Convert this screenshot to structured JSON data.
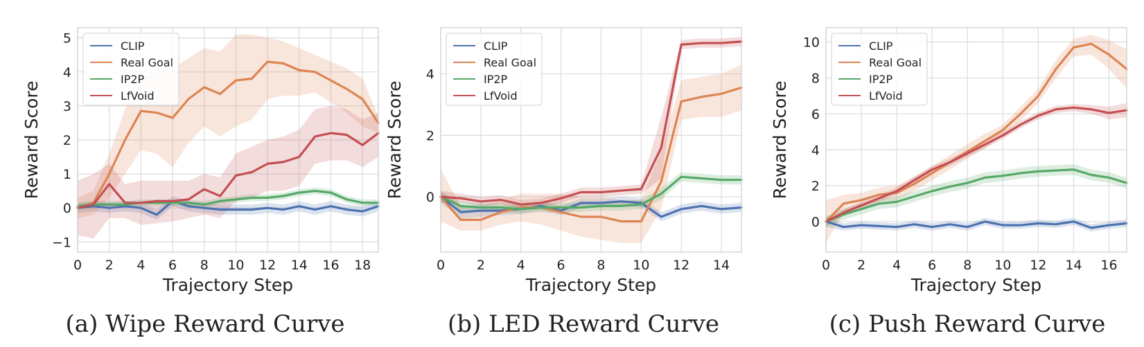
{
  "chart_data": [
    {
      "type": "line",
      "title": "",
      "caption": "(a) Wipe Reward Curve",
      "xlabel": "Trajectory Step",
      "ylabel": "Reward Score",
      "xlim": [
        0,
        19
      ],
      "ylim": [
        -1.3,
        5.3
      ],
      "xticks": [
        0,
        2,
        4,
        6,
        8,
        10,
        12,
        14,
        16,
        18
      ],
      "yticks": [
        -1,
        0,
        1,
        2,
        3,
        4,
        5
      ],
      "grid": true,
      "legend_position": "top-left",
      "x": [
        0,
        1,
        2,
        3,
        4,
        5,
        6,
        7,
        8,
        9,
        10,
        11,
        12,
        13,
        14,
        15,
        16,
        17,
        18,
        19
      ],
      "series": [
        {
          "name": "CLIP",
          "color": "#4c72b0",
          "values": [
            0,
            0.05,
            0,
            0.05,
            0,
            -0.2,
            0.2,
            0.05,
            0,
            -0.05,
            -0.05,
            -0.05,
            0,
            -0.05,
            0.05,
            -0.05,
            0.05,
            -0.05,
            -0.1,
            0.05
          ],
          "lower": [
            -0.15,
            -0.1,
            -0.15,
            -0.1,
            -0.15,
            -0.35,
            0.05,
            -0.1,
            -0.15,
            -0.2,
            -0.2,
            -0.2,
            -0.15,
            -0.2,
            -0.1,
            -0.2,
            -0.1,
            -0.2,
            -0.25,
            -0.1
          ],
          "upper": [
            0.15,
            0.2,
            0.15,
            0.2,
            0.15,
            -0.05,
            0.35,
            0.2,
            0.15,
            0.1,
            0.1,
            0.1,
            0.15,
            0.1,
            0.2,
            0.1,
            0.2,
            0.1,
            0.05,
            0.2
          ]
        },
        {
          "name": "Real Goal",
          "color": "#dd8452",
          "values": [
            0,
            0.15,
            1,
            2,
            2.85,
            2.8,
            2.65,
            3.2,
            3.55,
            3.35,
            3.75,
            3.8,
            4.3,
            4.25,
            4.05,
            4,
            3.75,
            3.5,
            3.2,
            2.5
          ],
          "lower": [
            -0.3,
            -0.2,
            0.3,
            1,
            1.7,
            1.6,
            1.2,
            1.9,
            2.4,
            2.1,
            2.4,
            2.6,
            3.2,
            3.3,
            3.3,
            3.4,
            3.1,
            2.8,
            2.4,
            2.2
          ],
          "upper": [
            0.3,
            0.5,
            1.6,
            2.9,
            3.8,
            4,
            4.1,
            4.4,
            4.7,
            4.6,
            5.1,
            5.1,
            5,
            4.9,
            4.7,
            4.5,
            4.3,
            4.1,
            3.8,
            2.7
          ]
        },
        {
          "name": "IP2P",
          "color": "#55a868",
          "values": [
            0.05,
            0.1,
            0.1,
            0.1,
            0.15,
            0.15,
            0.15,
            0.15,
            0.1,
            0.2,
            0.25,
            0.3,
            0.3,
            0.35,
            0.45,
            0.5,
            0.45,
            0.25,
            0.15,
            0.15
          ],
          "lower": [
            -0.05,
            0,
            0,
            0,
            0.05,
            0.05,
            0.05,
            0.05,
            0,
            0.1,
            0.15,
            0.2,
            0.2,
            0.25,
            0.35,
            0.4,
            0.35,
            0.15,
            0.05,
            0.05
          ],
          "upper": [
            0.15,
            0.2,
            0.2,
            0.2,
            0.25,
            0.25,
            0.25,
            0.25,
            0.2,
            0.3,
            0.35,
            0.4,
            0.4,
            0.45,
            0.55,
            0.6,
            0.55,
            0.35,
            0.25,
            0.25
          ]
        },
        {
          "name": "LfVoid",
          "color": "#c44e52",
          "values": [
            0,
            0.1,
            0.7,
            0.15,
            0.15,
            0.2,
            0.2,
            0.25,
            0.55,
            0.35,
            0.95,
            1.05,
            1.3,
            1.35,
            1.5,
            2.1,
            2.2,
            2.15,
            1.85,
            2.2
          ],
          "lower": [
            -0.8,
            -0.9,
            -0.3,
            -0.3,
            -0.5,
            -0.45,
            -0.4,
            -0.3,
            -0.2,
            -0.3,
            0.2,
            0.3,
            0.5,
            0.5,
            0.65,
            1.3,
            1.4,
            1.4,
            1.2,
            1.5
          ],
          "upper": [
            0.8,
            1,
            1.3,
            0.7,
            0.8,
            0.8,
            0.8,
            0.8,
            1,
            0.9,
            1.6,
            1.8,
            2,
            2.1,
            2.3,
            2.9,
            3,
            2.9,
            2.6,
            2.8
          ]
        }
      ]
    },
    {
      "type": "line",
      "title": "",
      "caption": "(b) LED Reward Curve",
      "xlabel": "Trajectory Step",
      "ylabel": "Reward Score",
      "xlim": [
        0,
        15
      ],
      "ylim": [
        -1.8,
        5.5
      ],
      "xticks": [
        0,
        2,
        4,
        6,
        8,
        10,
        12,
        14
      ],
      "yticks": [
        0,
        2,
        4
      ],
      "grid": true,
      "legend_position": "top-left",
      "x": [
        0,
        1,
        2,
        3,
        4,
        5,
        6,
        7,
        8,
        9,
        10,
        11,
        12,
        13,
        14,
        15
      ],
      "series": [
        {
          "name": "CLIP",
          "color": "#4c72b0",
          "values": [
            0,
            -0.5,
            -0.45,
            -0.45,
            -0.4,
            -0.3,
            -0.45,
            -0.2,
            -0.2,
            -0.15,
            -0.2,
            -0.65,
            -0.4,
            -0.3,
            -0.4,
            -0.35
          ],
          "lower": [
            -0.2,
            -0.7,
            -0.65,
            -0.6,
            -0.55,
            -0.45,
            -0.6,
            -0.35,
            -0.35,
            -0.3,
            -0.35,
            -0.8,
            -0.55,
            -0.45,
            -0.55,
            -0.5
          ],
          "upper": [
            0.2,
            -0.3,
            -0.25,
            -0.3,
            -0.25,
            -0.15,
            -0.3,
            -0.05,
            -0.05,
            0,
            -0.05,
            -0.5,
            -0.25,
            -0.15,
            -0.25,
            -0.2
          ]
        },
        {
          "name": "Real Goal",
          "color": "#dd8452",
          "values": [
            0,
            -0.75,
            -0.75,
            -0.5,
            -0.35,
            -0.35,
            -0.5,
            -0.65,
            -0.65,
            -0.8,
            -0.8,
            0.5,
            3.1,
            3.25,
            3.35,
            3.55
          ],
          "lower": [
            -0.8,
            -1.1,
            -1.1,
            -0.9,
            -0.8,
            -0.9,
            -1.1,
            -1.3,
            -1.4,
            -1.5,
            -1.5,
            -0.4,
            2.5,
            2.6,
            2.6,
            2.8
          ],
          "upper": [
            0.9,
            -0.3,
            -0.3,
            -0.1,
            0.1,
            0.1,
            0.1,
            0,
            0,
            -0.1,
            -0.1,
            1.5,
            3.8,
            3.9,
            4,
            4.3
          ]
        },
        {
          "name": "IP2P",
          "color": "#55a868",
          "values": [
            0,
            -0.3,
            -0.35,
            -0.35,
            -0.4,
            -0.35,
            -0.35,
            -0.35,
            -0.3,
            -0.3,
            -0.25,
            0.1,
            0.65,
            0.6,
            0.55,
            0.55
          ],
          "lower": [
            -0.15,
            -0.45,
            -0.5,
            -0.5,
            -0.55,
            -0.5,
            -0.5,
            -0.5,
            -0.45,
            -0.45,
            -0.4,
            -0.1,
            0.5,
            0.45,
            0.4,
            0.4
          ],
          "upper": [
            0.15,
            -0.15,
            -0.2,
            -0.2,
            -0.25,
            -0.2,
            -0.2,
            -0.2,
            -0.15,
            -0.15,
            -0.1,
            0.3,
            0.8,
            0.75,
            0.7,
            0.7
          ]
        },
        {
          "name": "LfVoid",
          "color": "#c44e52",
          "values": [
            0,
            -0.05,
            -0.15,
            -0.1,
            -0.25,
            -0.2,
            -0.05,
            0.15,
            0.15,
            0.2,
            0.25,
            1.6,
            4.95,
            5,
            5,
            5.05
          ],
          "lower": [
            -0.2,
            -0.2,
            -0.3,
            -0.25,
            -0.4,
            -0.35,
            -0.2,
            0,
            0,
            0.05,
            0.1,
            0.6,
            4.8,
            4.85,
            4.85,
            4.9
          ],
          "upper": [
            0.2,
            0.1,
            0,
            0.05,
            -0.1,
            -0.05,
            0.1,
            0.3,
            0.3,
            0.35,
            0.4,
            2.6,
            5.1,
            5.15,
            5.15,
            5.2
          ]
        }
      ]
    },
    {
      "type": "line",
      "title": "",
      "caption": "(c) Push Reward Curve",
      "xlabel": "Trajectory Step",
      "ylabel": "Reward Score",
      "xlim": [
        0,
        17
      ],
      "ylim": [
        -1.7,
        10.8
      ],
      "xticks": [
        0,
        2,
        4,
        6,
        8,
        10,
        12,
        14,
        16
      ],
      "yticks": [
        0,
        2,
        4,
        6,
        8,
        10
      ],
      "grid": true,
      "legend_position": "top-left",
      "x": [
        0,
        1,
        2,
        3,
        4,
        5,
        6,
        7,
        8,
        9,
        10,
        11,
        12,
        13,
        14,
        15,
        16,
        17
      ],
      "series": [
        {
          "name": "CLIP",
          "color": "#4c72b0",
          "values": [
            0,
            -0.3,
            -0.2,
            -0.25,
            -0.3,
            -0.15,
            -0.3,
            -0.15,
            -0.3,
            0,
            -0.2,
            -0.2,
            -0.1,
            -0.15,
            0,
            -0.35,
            -0.2,
            -0.1
          ],
          "lower": [
            -0.3,
            -0.5,
            -0.4,
            -0.45,
            -0.5,
            -0.35,
            -0.5,
            -0.35,
            -0.5,
            -0.2,
            -0.4,
            -0.4,
            -0.3,
            -0.35,
            -0.2,
            -0.55,
            -0.4,
            -0.3
          ],
          "upper": [
            0.3,
            -0.1,
            0,
            -0.05,
            -0.1,
            0.05,
            -0.1,
            0.05,
            -0.1,
            0.2,
            0,
            0,
            0.1,
            0.05,
            0.2,
            -0.15,
            0,
            0.1
          ]
        },
        {
          "name": "Real Goal",
          "color": "#dd8452",
          "values": [
            0,
            1,
            1.2,
            1.5,
            1.6,
            2.1,
            2.7,
            3.3,
            3.9,
            4.5,
            5.1,
            6,
            7,
            8.5,
            9.7,
            9.9,
            9.3,
            8.5
          ],
          "lower": [
            -1.2,
            0.5,
            0.8,
            1.1,
            1.2,
            1.7,
            2.3,
            2.9,
            3.5,
            4.1,
            4.8,
            5.6,
            6.6,
            8,
            9.2,
            9.3,
            8.5,
            7.4
          ],
          "upper": [
            1.2,
            1.5,
            1.6,
            1.9,
            2,
            2.5,
            3.1,
            3.7,
            4.3,
            4.9,
            5.4,
            6.4,
            7.4,
            9,
            10.2,
            10.4,
            10.1,
            9.6
          ]
        },
        {
          "name": "IP2P",
          "color": "#55a868",
          "values": [
            0,
            0.4,
            0.7,
            1,
            1.1,
            1.4,
            1.7,
            1.95,
            2.15,
            2.45,
            2.55,
            2.7,
            2.8,
            2.85,
            2.9,
            2.6,
            2.45,
            2.15
          ],
          "lower": [
            -0.3,
            0.1,
            0.4,
            0.7,
            0.8,
            1.1,
            1.4,
            1.65,
            1.85,
            2.15,
            2.25,
            2.4,
            2.5,
            2.55,
            2.6,
            2.3,
            2.15,
            1.85
          ],
          "upper": [
            0.3,
            0.7,
            1,
            1.3,
            1.4,
            1.7,
            2,
            2.25,
            2.45,
            2.75,
            2.85,
            3,
            3.1,
            3.15,
            3.2,
            2.9,
            2.75,
            2.45
          ]
        },
        {
          "name": "LfVoid",
          "color": "#c44e52",
          "values": [
            0,
            0.5,
            0.9,
            1.3,
            1.7,
            2.3,
            2.9,
            3.3,
            3.8,
            4.3,
            4.8,
            5.4,
            5.9,
            6.25,
            6.35,
            6.25,
            6.05,
            6.2
          ],
          "lower": [
            -0.2,
            0.3,
            0.7,
            1.1,
            1.5,
            2.1,
            2.7,
            3.1,
            3.6,
            4.1,
            4.6,
            5.2,
            5.7,
            6.05,
            6.15,
            6,
            5.7,
            5.8
          ],
          "upper": [
            0.2,
            0.7,
            1.1,
            1.5,
            1.9,
            2.5,
            3.1,
            3.5,
            4,
            4.5,
            5,
            5.6,
            6.1,
            6.45,
            6.55,
            6.5,
            6.4,
            6.6
          ]
        }
      ]
    }
  ]
}
